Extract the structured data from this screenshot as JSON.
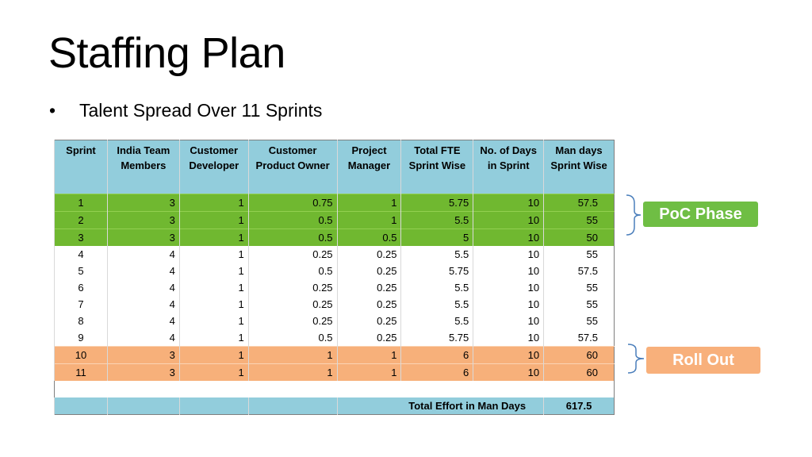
{
  "slide": {
    "title": "Staffing Plan",
    "bullet": "Talent Spread Over 11 Sprints",
    "bullet_symbol": "•"
  },
  "table": {
    "headers": [
      "Sprint",
      "India Team Members",
      "Customer Developer",
      "Customer Product Owner",
      "Project Manager",
      "Total FTE Sprint Wise",
      "No. of Days in Sprint",
      "Man days Sprint Wise"
    ],
    "rows": [
      [
        "1",
        "3",
        "1",
        "0.75",
        "1",
        "5.75",
        "10",
        "57.5"
      ],
      [
        "2",
        "3",
        "1",
        "0.5",
        "1",
        "5.5",
        "10",
        "55"
      ],
      [
        "3",
        "3",
        "1",
        "0.5",
        "0.5",
        "5",
        "10",
        "50"
      ],
      [
        "4",
        "4",
        "1",
        "0.25",
        "0.25",
        "5.5",
        "10",
        "55"
      ],
      [
        "5",
        "4",
        "1",
        "0.5",
        "0.25",
        "5.75",
        "10",
        "57.5"
      ],
      [
        "6",
        "4",
        "1",
        "0.25",
        "0.25",
        "5.5",
        "10",
        "55"
      ],
      [
        "7",
        "4",
        "1",
        "0.25",
        "0.25",
        "5.5",
        "10",
        "55"
      ],
      [
        "8",
        "4",
        "1",
        "0.25",
        "0.25",
        "5.5",
        "10",
        "55"
      ],
      [
        "9",
        "4",
        "1",
        "0.5",
        "0.25",
        "5.75",
        "10",
        "57.5"
      ],
      [
        "10",
        "3",
        "1",
        "1",
        "1",
        "6",
        "10",
        "60"
      ],
      [
        "11",
        "3",
        "1",
        "1",
        "1",
        "6",
        "10",
        "60"
      ]
    ],
    "total_label": "Total Effort in Man Days",
    "total_value": "617.5"
  },
  "phases": {
    "poc_label": "PoC Phase",
    "rollout_label": "Roll Out"
  },
  "colors": {
    "header": "#92cddc",
    "poc": "#70b830",
    "rollout": "#f7b07a",
    "brace": "#4a7ebb"
  }
}
